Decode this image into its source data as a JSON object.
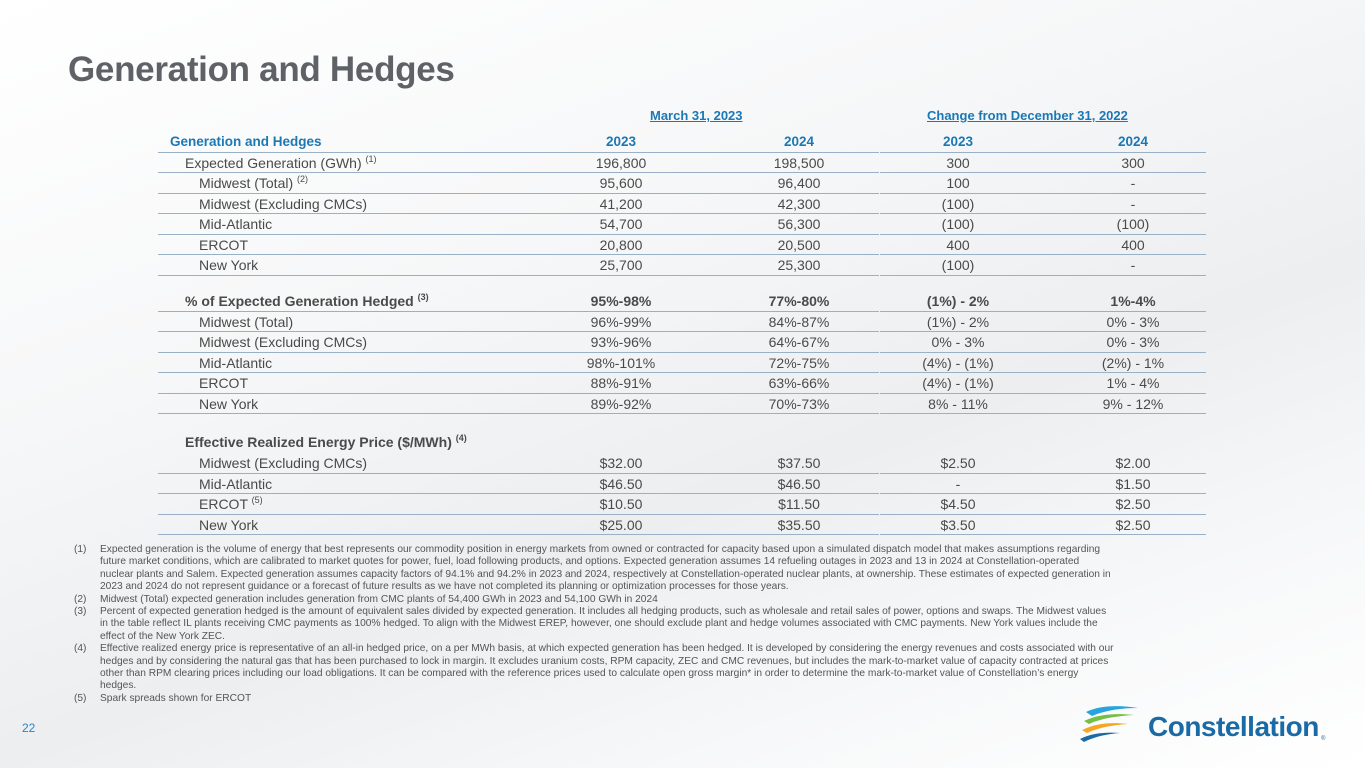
{
  "page": {
    "title": "Generation and Hedges",
    "number": "22"
  },
  "table": {
    "group_headers": {
      "current": "March 31, 2023",
      "change": "Change from December 31, 2022"
    },
    "header": {
      "label": "Generation and Hedges",
      "cols": [
        "2023",
        "2024",
        "2023",
        "2024"
      ]
    },
    "rows": [
      {
        "label": "Expected Generation (GWh)",
        "sup": "(1)",
        "v": [
          "196,800",
          "198,500",
          "300",
          "300"
        ]
      },
      {
        "label": "Midwest (Total)",
        "sup": "(2)",
        "v": [
          "95,600",
          "96,400",
          "100",
          "-"
        ]
      },
      {
        "label": "Midwest  (Excluding CMCs)",
        "sup": "",
        "v": [
          "41,200",
          "42,300",
          "(100)",
          "-"
        ]
      },
      {
        "label": "Mid-Atlantic",
        "sup": "",
        "v": [
          "54,700",
          "56,300",
          "(100)",
          "(100)"
        ]
      },
      {
        "label": "ERCOT",
        "sup": "",
        "v": [
          "20,800",
          "20,500",
          "400",
          "400"
        ]
      },
      {
        "label": "New York",
        "sup": "",
        "v": [
          "25,700",
          "25,300",
          "(100)",
          "-"
        ]
      },
      {
        "label": "% of Expected Generation Hedged",
        "sup": "(3)",
        "v": [
          "95%-98%",
          "77%-80%",
          "(1%) - 2%",
          "1%-4%"
        ]
      },
      {
        "label": "Midwest (Total)",
        "sup": "",
        "v": [
          "96%-99%",
          "84%-87%",
          "(1%) - 2%",
          "0% - 3%"
        ]
      },
      {
        "label": "Midwest (Excluding CMCs)",
        "sup": "",
        "v": [
          "93%-96%",
          "64%-67%",
          "0% - 3%",
          "0% - 3%"
        ]
      },
      {
        "label": "Mid-Atlantic",
        "sup": "",
        "v": [
          "98%-101%",
          "72%-75%",
          "(4%) - (1%)",
          "(2%) - 1%"
        ]
      },
      {
        "label": "ERCOT",
        "sup": "",
        "v": [
          "88%-91%",
          "63%-66%",
          "(4%) - (1%)",
          "1% - 4%"
        ]
      },
      {
        "label": "New York",
        "sup": "",
        "v": [
          "89%-92%",
          "70%-73%",
          "8% - 11%",
          "9% - 12%"
        ]
      },
      {
        "label": "Effective Realized Energy Price ($/MWh)",
        "sup": "(4)",
        "v": [
          "",
          "",
          "",
          ""
        ]
      },
      {
        "label": "Midwest (Excluding CMCs)",
        "sup": "",
        "v": [
          "$32.00",
          "$37.50",
          "$2.50",
          "$2.00"
        ]
      },
      {
        "label": "Mid-Atlantic",
        "sup": "",
        "v": [
          "$46.50",
          "$46.50",
          "-",
          "$1.50"
        ]
      },
      {
        "label": "ERCOT",
        "sup": "(5)",
        "v": [
          "$10.50",
          "$11.50",
          "$4.50",
          "$2.50"
        ]
      },
      {
        "label": "New York",
        "sup": "",
        "v": [
          "$25.00",
          "$35.50",
          "$3.50",
          "$2.50"
        ]
      }
    ]
  },
  "footnotes": [
    {
      "mark": "(1)",
      "text": "Expected generation is the volume of energy that best represents our commodity position in energy markets from owned or contracted for capacity based upon a simulated dispatch model that makes assumptions regarding future market conditions, which are calibrated to market quotes for power, fuel, load following products, and options. Expected generation assumes 14 refueling outages in 2023 and 13 in 2024 at Constellation-operated nuclear plants and Salem. Expected generation assumes capacity factors of 94.1% and 94.2% in 2023 and 2024, respectively at Constellation-operated nuclear plants, at ownership. These estimates of expected generation in 2023 and 2024 do not represent guidance or a forecast of future results as we have not completed its planning or optimization processes for those years."
    },
    {
      "mark": "(2)",
      "text": "Midwest (Total) expected generation includes generation from CMC plants of 54,400 GWh in 2023 and 54,100 GWh in 2024"
    },
    {
      "mark": "(3)",
      "text": "Percent of expected generation hedged is the amount of equivalent sales divided by expected generation. It includes all hedging products, such as wholesale and retail sales of power, options and swaps. The Midwest values in the table reflect IL plants receiving CMC payments as 100% hedged. To align with the Midwest EREP, however, one should exclude plant and hedge volumes associated with CMC payments. New York values include the effect of the New York ZEC."
    },
    {
      "mark": "(4)",
      "text": "Effective realized energy price is representative of an all-in hedged price, on a per MWh basis, at which expected generation has been hedged. It is developed by considering the energy revenues and costs associated with our hedges and by considering the natural gas that has been purchased to lock in margin. It excludes uranium costs, RPM capacity, ZEC and CMC revenues, but includes the mark-to-market value of capacity contracted at prices other than RPM clearing prices including our load obligations. It can be compared with the reference prices used to calculate open gross margin* in order to determine the mark-to-market value of Constellation’s energy hedges."
    },
    {
      "mark": "(5)",
      "text": "Spark spreads shown for ERCOT"
    }
  ],
  "logo": {
    "text": "Constellation",
    "tm": "®"
  },
  "colors": {
    "accent": "#1b78b4",
    "title": "#5e6266",
    "logo": "#1a6aa5"
  }
}
